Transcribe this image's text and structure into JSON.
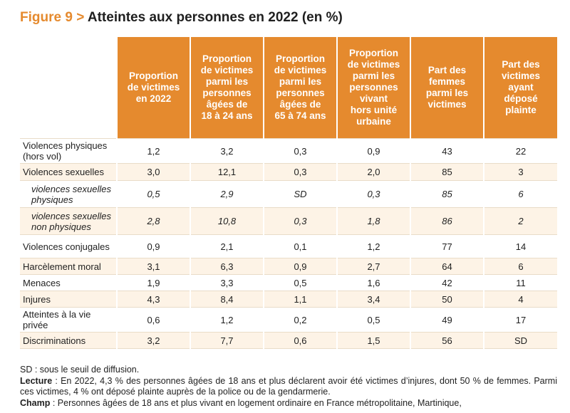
{
  "title": {
    "figure": "Figure 9",
    "sep": ">",
    "text": "Atteintes aux personnes en 2022 (en %)"
  },
  "table": {
    "headers": [
      "Proportion\nde victimes\nen 2022",
      "Proportion\nde victimes\nparmi les\npersonnes\nâgées de\n18 à 24 ans",
      "Proportion\nde victimes\nparmi les\npersonnes\nâgées de\n65 à 74 ans",
      "Proportion\nde victimes\nparmi les\npersonnes\nvivant\nhors unité\nurbaine",
      "Part des\nfemmes\nparmi les\nvictimes",
      "Part des\nvictimes\nayant\ndéposé\nplainte"
    ],
    "rows": [
      {
        "label": "Violences physiques (hors vol)",
        "values": [
          "1,2",
          "3,2",
          "0,3",
          "0,9",
          "43",
          "22"
        ],
        "sub": false
      },
      {
        "label": "Violences sexuelles",
        "values": [
          "3,0",
          "12,1",
          "0,3",
          "2,0",
          "85",
          "3"
        ],
        "sub": false
      },
      {
        "label": "violences sexuelles physiques",
        "values": [
          "0,5",
          "2,9",
          "SD",
          "0,3",
          "85",
          "6"
        ],
        "sub": true
      },
      {
        "label": "violences sexuelles non physiques",
        "values": [
          "2,8",
          "10,8",
          "0,3",
          "1,8",
          "86",
          "2"
        ],
        "sub": true
      },
      {
        "label": "Violences conjugales",
        "values": [
          "0,9",
          "2,1",
          "0,1",
          "1,2",
          "77",
          "14"
        ],
        "sub": false
      },
      {
        "label": "Harcèlement moral",
        "values": [
          "3,1",
          "6,3",
          "0,9",
          "2,7",
          "64",
          "6"
        ],
        "sub": false
      },
      {
        "label": "Menaces",
        "values": [
          "1,9",
          "3,3",
          "0,5",
          "1,6",
          "42",
          "11"
        ],
        "sub": false
      },
      {
        "label": "Injures",
        "values": [
          "4,3",
          "8,4",
          "1,1",
          "3,4",
          "50",
          "4"
        ],
        "sub": false
      },
      {
        "label": "Atteintes à la vie privée",
        "values": [
          "0,6",
          "1,2",
          "0,2",
          "0,5",
          "49",
          "17"
        ],
        "sub": false
      },
      {
        "label": "Discriminations",
        "values": [
          "3,2",
          "7,7",
          "0,6",
          "1,5",
          "56",
          "SD"
        ],
        "sub": false
      }
    ]
  },
  "notes": {
    "sd": "SD : sous le seuil de diffusion.",
    "lecture_label": "Lecture",
    "lecture_text": " : En 2022, 4,3 % des personnes âgées de 18 ans et plus déclarent avoir été victimes d’injures, dont 50 % de femmes. Parmi ces victimes, 4 % ont déposé plainte auprès de la police ou de la gendarmerie.",
    "champ_label": "Champ",
    "champ_text": " : Personnes âgées de 18 ans et plus vivant en logement ordinaire en France métropolitaine, Martinique,"
  },
  "colors": {
    "accent": "#e58a2e",
    "row_shade": "#fdf3e6"
  }
}
